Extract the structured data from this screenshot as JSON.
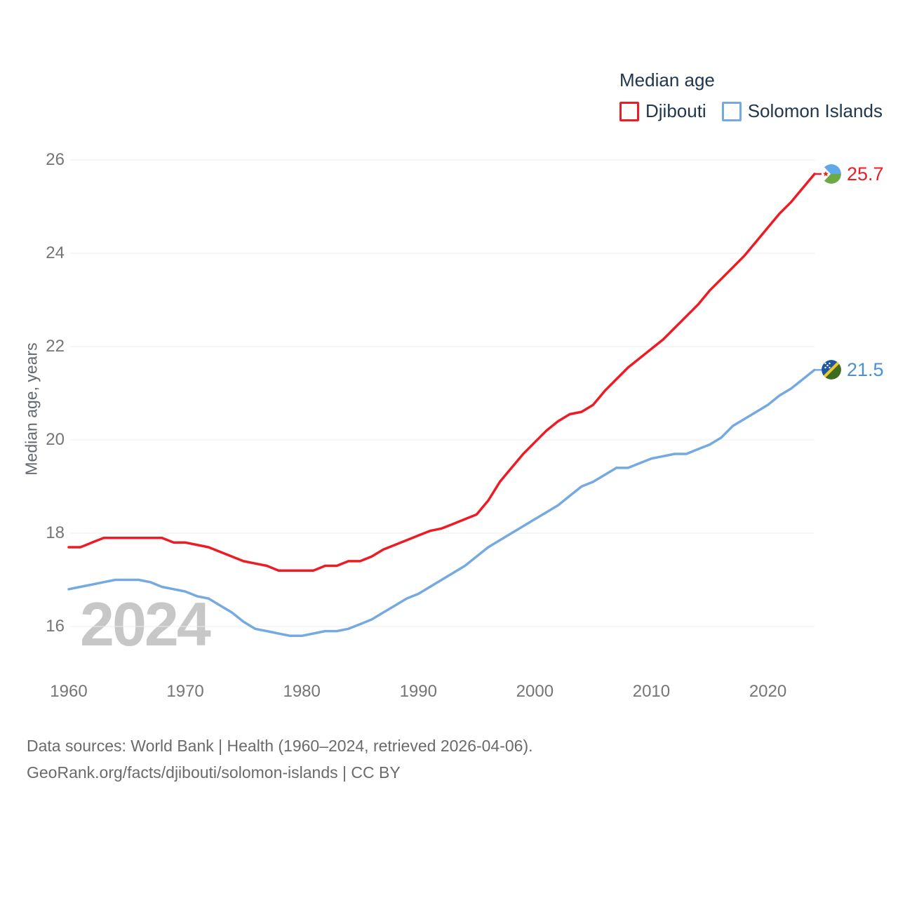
{
  "page": {
    "background": "#ffffff"
  },
  "legend": {
    "title": "Median age",
    "items": [
      {
        "label": "Djibouti",
        "color": "#ed1c24"
      },
      {
        "label": "Solomon Islands",
        "color": "#74aadf"
      }
    ]
  },
  "watermark": "2024",
  "y_axis": {
    "title": "Median age, years",
    "ticks": [
      26,
      24,
      22,
      20,
      18,
      16
    ]
  },
  "x_axis": {
    "ticks": [
      1960,
      1970,
      1980,
      1990,
      2000,
      2010,
      2020
    ]
  },
  "footer": {
    "line1": "Data sources: World Bank | Health (1960–2024, retrieved 2026-04-06).",
    "line2": "GeoRank.org/facts/djibouti/solomon-islands | CC BY"
  },
  "colors": {
    "grid": "#ececec",
    "tick_text": "#757575",
    "legend_text": "#20374e",
    "watermark": "#c7c7c7",
    "djibouti_red": "#ed1c24",
    "solomon_blue": "#74aadf",
    "solomon_label_blue": "#4a90d2"
  },
  "chart_data": {
    "type": "line",
    "title": "Median age",
    "xlabel": "",
    "ylabel": "Median age, years",
    "xlim": [
      1960,
      2024
    ],
    "ylim": [
      15.2,
      26.6
    ],
    "grid": "horizontal",
    "legend_position": "top-right",
    "years": [
      1960,
      1961,
      1962,
      1963,
      1964,
      1965,
      1966,
      1967,
      1968,
      1969,
      1970,
      1971,
      1972,
      1973,
      1974,
      1975,
      1976,
      1977,
      1978,
      1979,
      1980,
      1981,
      1982,
      1983,
      1984,
      1985,
      1986,
      1987,
      1988,
      1989,
      1990,
      1991,
      1992,
      1993,
      1994,
      1995,
      1996,
      1997,
      1998,
      1999,
      2000,
      2001,
      2002,
      2003,
      2004,
      2005,
      2006,
      2007,
      2008,
      2009,
      2010,
      2011,
      2012,
      2013,
      2014,
      2015,
      2016,
      2017,
      2018,
      2019,
      2020,
      2021,
      2022,
      2023,
      2024
    ],
    "series": [
      {
        "name": "Djibouti",
        "color": "#ed1c24",
        "label_color": "#ed1c24",
        "end_label": "25.7",
        "values": [
          17.7,
          17.7,
          17.8,
          17.9,
          17.9,
          17.9,
          17.9,
          17.9,
          17.9,
          17.8,
          17.8,
          17.75,
          17.7,
          17.6,
          17.5,
          17.4,
          17.35,
          17.3,
          17.2,
          17.2,
          17.2,
          17.2,
          17.3,
          17.3,
          17.4,
          17.4,
          17.5,
          17.65,
          17.75,
          17.85,
          17.95,
          18.05,
          18.1,
          18.2,
          18.3,
          18.4,
          18.7,
          19.1,
          19.4,
          19.7,
          19.95,
          20.2,
          20.4,
          20.55,
          20.6,
          20.75,
          21.05,
          21.3,
          21.55,
          21.75,
          21.95,
          22.15,
          22.4,
          22.65,
          22.9,
          23.2,
          23.45,
          23.7,
          23.95,
          24.25,
          24.55,
          24.85,
          25.1,
          25.4,
          25.7
        ]
      },
      {
        "name": "Solomon Islands",
        "color": "#74aadf",
        "label_color": "#4a90d2",
        "end_label": "21.5",
        "values": [
          16.8,
          16.85,
          16.9,
          16.95,
          17.0,
          17.0,
          17.0,
          16.95,
          16.85,
          16.8,
          16.75,
          16.65,
          16.6,
          16.45,
          16.3,
          16.1,
          15.95,
          15.9,
          15.85,
          15.8,
          15.8,
          15.85,
          15.9,
          15.9,
          15.95,
          16.05,
          16.15,
          16.3,
          16.45,
          16.6,
          16.7,
          16.85,
          17.0,
          17.15,
          17.3,
          17.5,
          17.7,
          17.85,
          18.0,
          18.15,
          18.3,
          18.45,
          18.6,
          18.8,
          19.0,
          19.1,
          19.25,
          19.4,
          19.4,
          19.5,
          19.6,
          19.65,
          19.7,
          19.7,
          19.8,
          19.9,
          20.05,
          20.3,
          20.45,
          20.6,
          20.75,
          20.95,
          21.1,
          21.3,
          21.5
        ]
      }
    ]
  }
}
